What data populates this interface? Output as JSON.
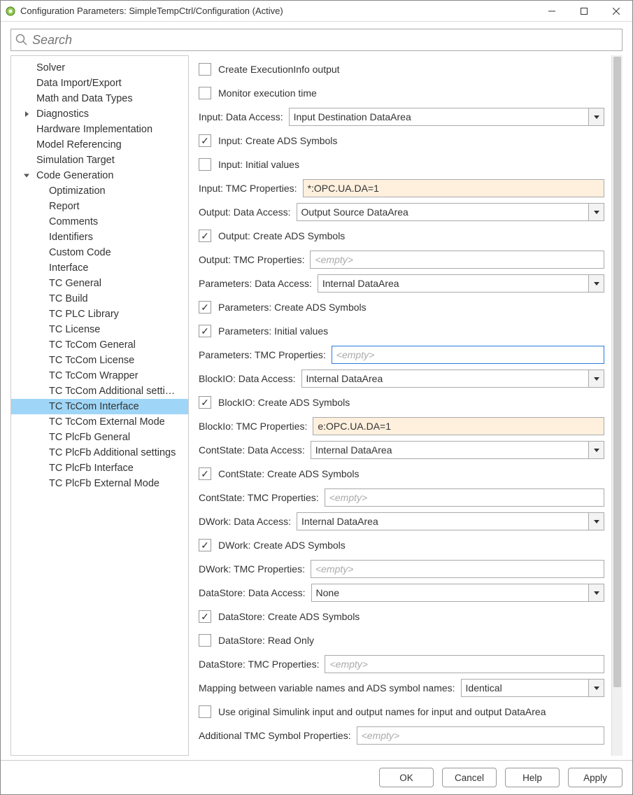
{
  "window": {
    "title": "Configuration Parameters: SimpleTempCtrl/Configuration (Active)"
  },
  "search": {
    "placeholder": "Search"
  },
  "nav": {
    "items": [
      {
        "label": "Solver",
        "depth": 0
      },
      {
        "label": "Data Import/Export",
        "depth": 0
      },
      {
        "label": "Math and Data Types",
        "depth": 0
      },
      {
        "label": "Diagnostics",
        "depth": 0,
        "caret": true,
        "open": false
      },
      {
        "label": "Hardware Implementation",
        "depth": 0
      },
      {
        "label": "Model Referencing",
        "depth": 0
      },
      {
        "label": "Simulation Target",
        "depth": 0
      },
      {
        "label": "Code Generation",
        "depth": 0,
        "caret": true,
        "open": true
      },
      {
        "label": "Optimization",
        "depth": 1
      },
      {
        "label": "Report",
        "depth": 1
      },
      {
        "label": "Comments",
        "depth": 1
      },
      {
        "label": "Identifiers",
        "depth": 1
      },
      {
        "label": "Custom Code",
        "depth": 1
      },
      {
        "label": "Interface",
        "depth": 1
      },
      {
        "label": "TC General",
        "depth": 1
      },
      {
        "label": "TC Build",
        "depth": 1
      },
      {
        "label": "TC PLC Library",
        "depth": 1
      },
      {
        "label": "TC License",
        "depth": 1
      },
      {
        "label": "TC TcCom General",
        "depth": 1
      },
      {
        "label": "TC TcCom License",
        "depth": 1
      },
      {
        "label": "TC TcCom Wrapper",
        "depth": 1
      },
      {
        "label": "TC TcCom Additional setti…",
        "depth": 1
      },
      {
        "label": "TC TcCom Interface",
        "depth": 1,
        "selected": true
      },
      {
        "label": "TC TcCom External Mode",
        "depth": 1
      },
      {
        "label": "TC PlcFb General",
        "depth": 1
      },
      {
        "label": "TC PlcFb Additional settings",
        "depth": 1
      },
      {
        "label": "TC PlcFb Interface",
        "depth": 1
      },
      {
        "label": "TC PlcFb External Mode",
        "depth": 1
      }
    ]
  },
  "form": {
    "createExecInfo": {
      "label": "Create ExecutionInfo output",
      "checked": false
    },
    "monitorExec": {
      "label": "Monitor execution time",
      "checked": false
    },
    "inputDataAccess": {
      "label": "Input: Data Access:",
      "value": "Input Destination DataArea"
    },
    "inputCreateADS": {
      "label": "Input: Create ADS Symbols",
      "checked": true
    },
    "inputInitVals": {
      "label": "Input: Initial values",
      "checked": false
    },
    "inputTMC": {
      "label": "Input: TMC Properties:",
      "value": "*:OPC.UA.DA=1",
      "hl": true
    },
    "outputDataAccess": {
      "label": "Output: Data Access:",
      "value": "Output Source DataArea"
    },
    "outputCreateADS": {
      "label": "Output: Create ADS Symbols",
      "checked": true
    },
    "outputTMC": {
      "label": "Output: TMC Properties:",
      "value": "",
      "placeholder": "<empty>"
    },
    "paramsDataAccess": {
      "label": "Parameters: Data Access:",
      "value": "Internal DataArea"
    },
    "paramsCreateADS": {
      "label": "Parameters: Create ADS Symbols",
      "checked": true
    },
    "paramsInitVals": {
      "label": "Parameters: Initial values",
      "checked": true
    },
    "paramsTMC": {
      "label": "Parameters: TMC Properties:",
      "value": "",
      "placeholder": "<empty>",
      "blue": true
    },
    "blockioDataAccess": {
      "label": "BlockIO: Data Access:",
      "value": "Internal DataArea"
    },
    "blockioCreateADS": {
      "label": "BlockIO: Create ADS Symbols",
      "checked": true
    },
    "blockioTMC": {
      "label": "BlockIo: TMC Properties:",
      "value": "e:OPC.UA.DA=1",
      "hl": true
    },
    "contStateDataAccess": {
      "label": "ContState: Data Access:",
      "value": "Internal DataArea"
    },
    "contStateCreateADS": {
      "label": "ContState: Create ADS Symbols",
      "checked": true
    },
    "contStateTMC": {
      "label": "ContState: TMC Properties:",
      "value": "",
      "placeholder": "<empty>"
    },
    "dworkDataAccess": {
      "label": "DWork: Data Access:",
      "value": "Internal DataArea"
    },
    "dworkCreateADS": {
      "label": "DWork: Create ADS Symbols",
      "checked": true
    },
    "dworkTMC": {
      "label": "DWork: TMC Properties:",
      "value": "",
      "placeholder": "<empty>"
    },
    "dataStoreDataAccess": {
      "label": "DataStore: Data Access:",
      "value": "None"
    },
    "dataStoreCreateADS": {
      "label": "DataStore: Create ADS Symbols",
      "checked": true
    },
    "dataStoreReadOnly": {
      "label": "DataStore: Read Only",
      "checked": false
    },
    "dataStoreTMC": {
      "label": "DataStore: TMC Properties:",
      "value": "",
      "placeholder": "<empty>"
    },
    "mapping": {
      "label": "Mapping between variable names and ADS symbol names:",
      "value": "Identical"
    },
    "useOriginal": {
      "label": "Use original Simulink input and output names for input and output DataArea",
      "checked": false
    },
    "addTMC": {
      "label": "Additional TMC Symbol Properties:",
      "value": "",
      "placeholder": "<empty>"
    }
  },
  "buttons": {
    "ok": "OK",
    "cancel": "Cancel",
    "help": "Help",
    "apply": "Apply"
  },
  "colors": {
    "selection": "#9fd6f7",
    "highlight": "#fff0de",
    "focusBorder": "#2a7de1"
  }
}
